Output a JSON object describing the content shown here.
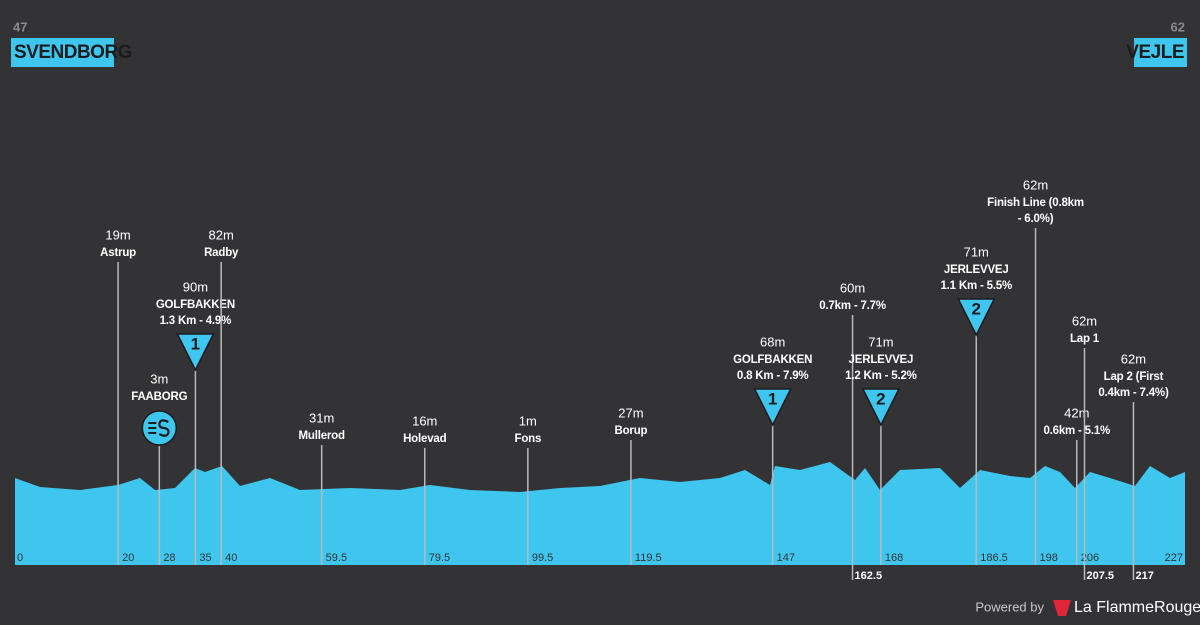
{
  "chart_data": {
    "type": "profile",
    "start": {
      "number": 47,
      "name": "SVENDBORG"
    },
    "finish": {
      "number": 62,
      "name": "VEJLE"
    },
    "xlim": [
      0,
      227
    ],
    "color": "#3fc6ef",
    "waypoints": [
      {
        "km": 20,
        "elevation": "19m",
        "lines": [
          "Astrup"
        ]
      },
      {
        "km": 28,
        "elevation": "3m",
        "lines": [
          "FAABORG"
        ],
        "marker": {
          "type": "sprint"
        }
      },
      {
        "km": 35,
        "elevation": "90m",
        "lines": [
          "GOLFBAKKEN",
          "1.3 Km - 4.9%"
        ],
        "marker": {
          "type": "climb",
          "category": 1
        }
      },
      {
        "km": 40,
        "elevation": "82m",
        "lines": [
          "Radby"
        ]
      },
      {
        "km": 59.5,
        "elevation": "31m",
        "lines": [
          "Mullerod"
        ]
      },
      {
        "km": 79.5,
        "elevation": "16m",
        "lines": [
          "Holevad"
        ]
      },
      {
        "km": 99.5,
        "elevation": "1m",
        "lines": [
          "Fons"
        ]
      },
      {
        "km": 119.5,
        "elevation": "27m",
        "lines": [
          "Borup"
        ]
      },
      {
        "km": 147,
        "elevation": "68m",
        "lines": [
          "GOLFBAKKEN",
          "0.8 Km - 7.9%"
        ],
        "marker": {
          "type": "climb",
          "category": 1
        }
      },
      {
        "km": 162.5,
        "elevation": "60m",
        "lines": [
          "0.7km - 7.7%"
        ],
        "km_label_below": true
      },
      {
        "km": 168,
        "elevation": "71m",
        "lines": [
          "JERLEVVEJ",
          "1.2 Km - 5.2%"
        ],
        "marker": {
          "type": "climb",
          "category": 2
        }
      },
      {
        "km": 186.5,
        "elevation": "71m",
        "lines": [
          "JERLEVVEJ",
          "1.1 Km - 5.5%"
        ],
        "marker": {
          "type": "climb",
          "category": 2
        }
      },
      {
        "km": 198,
        "elevation": "62m",
        "lines": [
          "Finish Line (0.8km",
          "- 6.0%)"
        ]
      },
      {
        "km": 206,
        "elevation": "42m",
        "lines": [
          "0.6km - 5.1%"
        ]
      },
      {
        "km": 207.5,
        "elevation": "62m",
        "lines": [
          "Lap 1"
        ],
        "km_label_below": true
      },
      {
        "km": 217,
        "elevation": "62m",
        "lines": [
          "Lap 2 (First",
          "0.4km - 7.4%)"
        ],
        "km_label_below": true
      }
    ]
  },
  "footer": {
    "powered_by": "Powered by",
    "brand": "La FlammeRouge"
  }
}
